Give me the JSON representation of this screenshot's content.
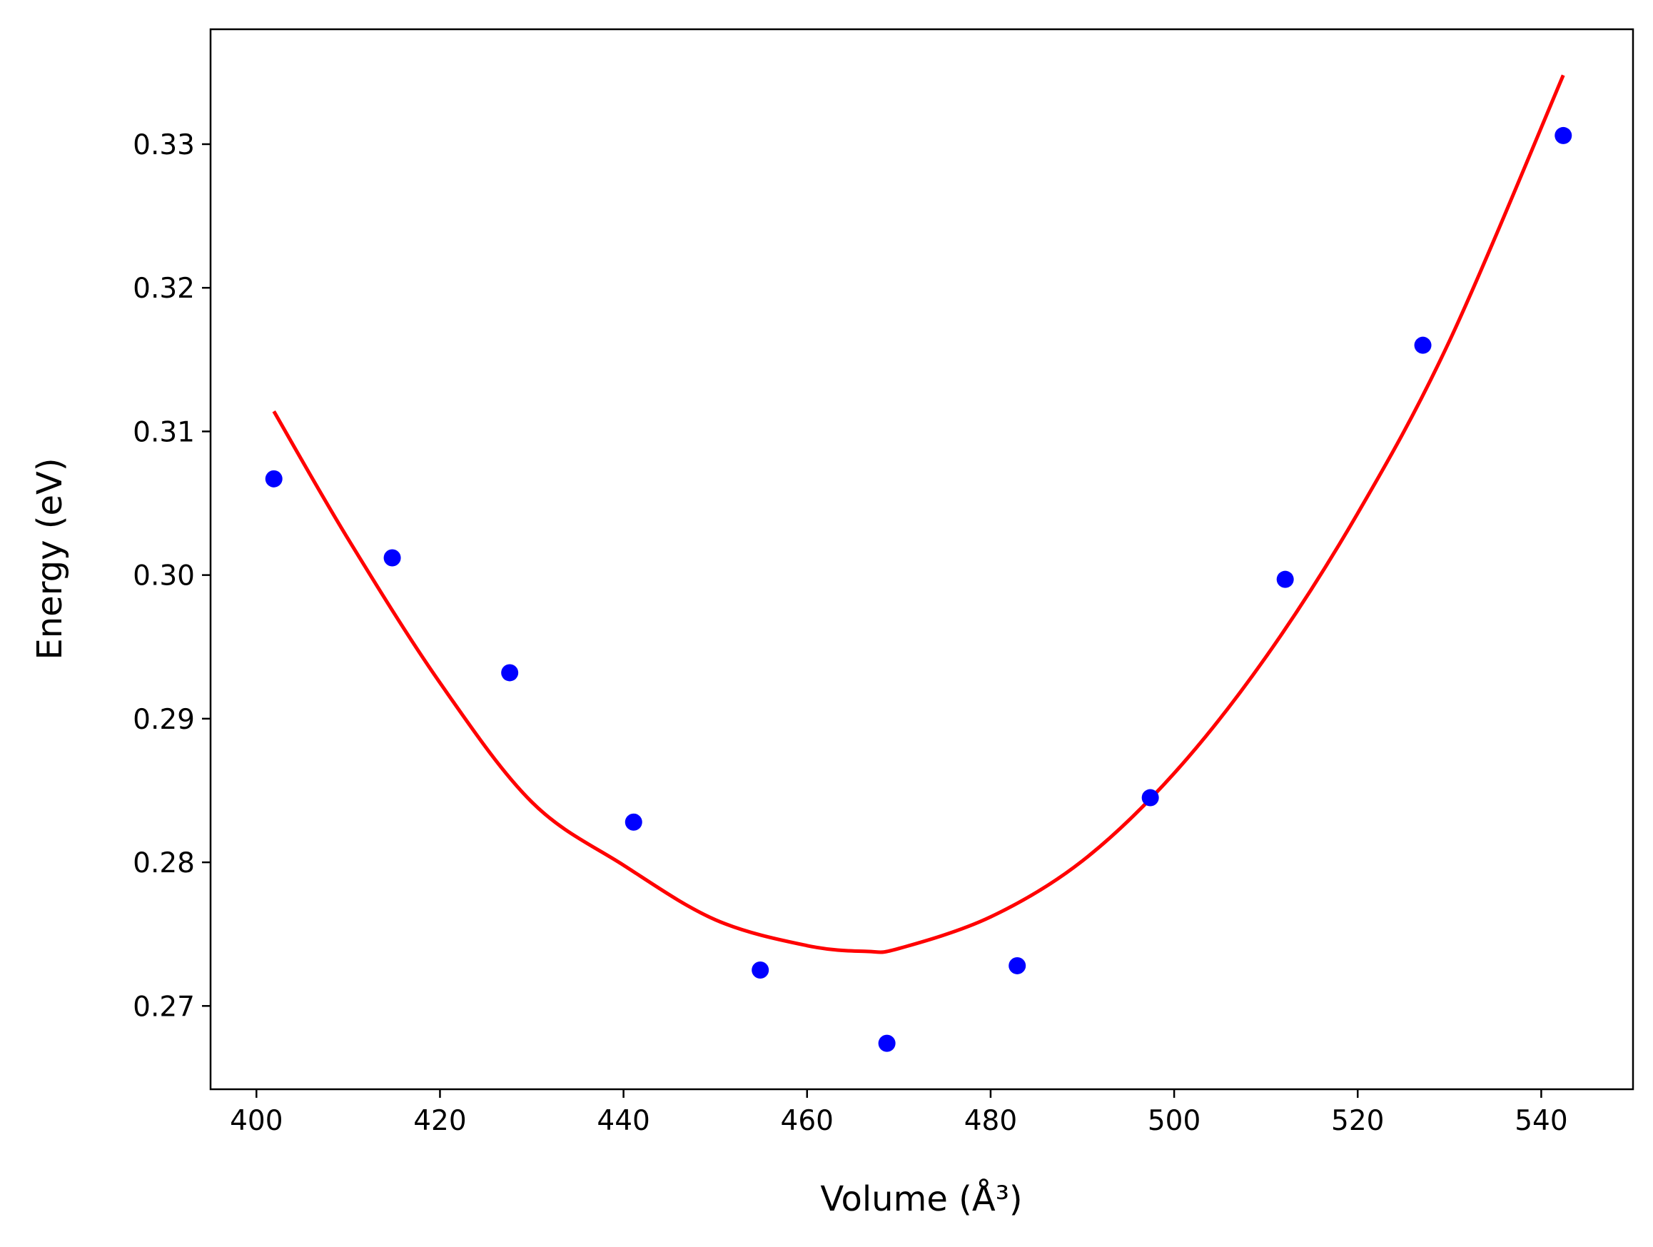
{
  "chart_data": {
    "type": "scatter",
    "xlabel": "Volume (Å³)",
    "ylabel": "Energy (eV)",
    "xlim": [
      395,
      550
    ],
    "ylim": [
      0.2642,
      0.338
    ],
    "xticks": [
      400,
      420,
      440,
      460,
      480,
      500,
      520,
      540
    ],
    "yticks": [
      0.27,
      0.28,
      0.29,
      0.3,
      0.31,
      0.32,
      0.33
    ],
    "xtick_labels": [
      "400",
      "420",
      "440",
      "460",
      "480",
      "500",
      "520",
      "540"
    ],
    "ytick_labels": [
      "0.27",
      "0.28",
      "0.29",
      "0.30",
      "0.31",
      "0.32",
      "0.33"
    ],
    "grid": false,
    "series": [
      {
        "kind": "scatter",
        "color": "#0000ff",
        "x": [
          401.9,
          414.8,
          427.6,
          441.1,
          454.9,
          468.7,
          482.9,
          497.4,
          512.1,
          527.1,
          542.4
        ],
        "y": [
          0.3067,
          0.3012,
          0.2932,
          0.2828,
          0.2725,
          0.2674,
          0.2728,
          0.2845,
          0.2997,
          0.316,
          0.3306
        ]
      },
      {
        "kind": "line",
        "color": "#ff0000",
        "x": [
          401.9,
          410,
          420,
          430,
          440,
          450,
          460,
          466.5,
          470,
          480,
          490,
          500,
          510,
          520,
          530,
          542.4
        ],
        "y": [
          0.3114,
          0.3025,
          0.2925,
          0.2842,
          0.2798,
          0.276,
          0.2742,
          0.2738,
          0.274,
          0.2762,
          0.2801,
          0.2862,
          0.2943,
          0.3043,
          0.3163,
          0.3348
        ]
      }
    ]
  }
}
